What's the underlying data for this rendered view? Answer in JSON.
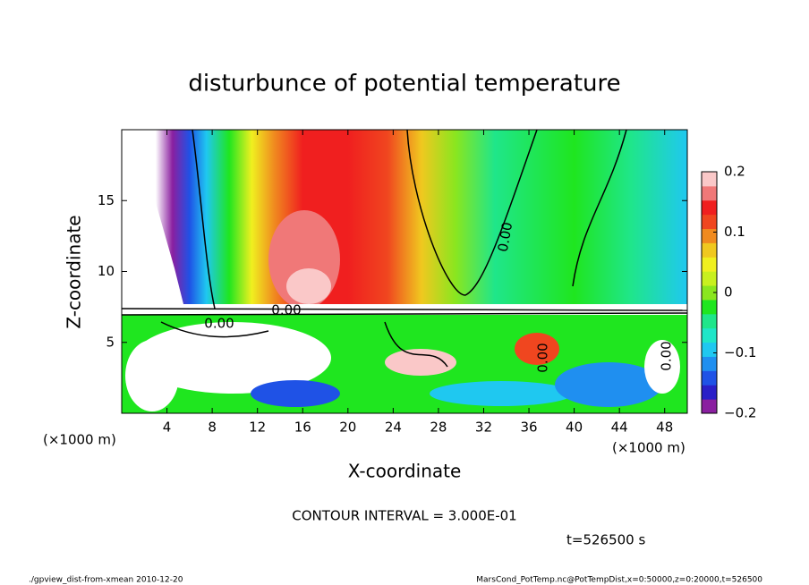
{
  "chart_data": {
    "type": "contour",
    "title": "disturbunce of potential temperature",
    "xlabel": "X-coordinate",
    "ylabel": "Z-coordinate",
    "x_unit_label": "(×1000 m)",
    "xlim": [
      0,
      50
    ],
    "xticks": [
      4,
      8,
      12,
      16,
      20,
      24,
      28,
      32,
      36,
      40,
      44,
      48
    ],
    "ylim": [
      0,
      20
    ],
    "yticks": [
      5,
      10,
      15
    ],
    "clim": [
      -0.2,
      0.2
    ],
    "cticks": [
      {
        "value": -0.2,
        "label": "−0.2"
      },
      {
        "value": -0.1,
        "label": "−0.1"
      },
      0,
      0.1,
      0.2
    ],
    "colorbar_colors": [
      "#8a1fa0",
      "#2a1fc8",
      "#1f52e6",
      "#1f8ff0",
      "#1fc8f0",
      "#1fe6c8",
      "#1fe68a",
      "#1fe61f",
      "#8ae61f",
      "#c8f01f",
      "#f0f01f",
      "#f0c81f",
      "#f08a1f",
      "#f0461f",
      "#f01f1f",
      "#f07878",
      "#fac8c8"
    ],
    "contour_labels": [
      "0.00",
      "0.00",
      "0.00",
      "0.00",
      "0.00"
    ],
    "contour_interval": "CONTOUR INTERVAL = 3.000E-01",
    "time_label": "t=526500 s",
    "footer_left": "./gpview_dist-from-xmean  2010-12-20",
    "footer_right": "MarsCond_PotTemp.nc@PotTempDist,x=0:50000,z=0:20000,t=526500"
  }
}
